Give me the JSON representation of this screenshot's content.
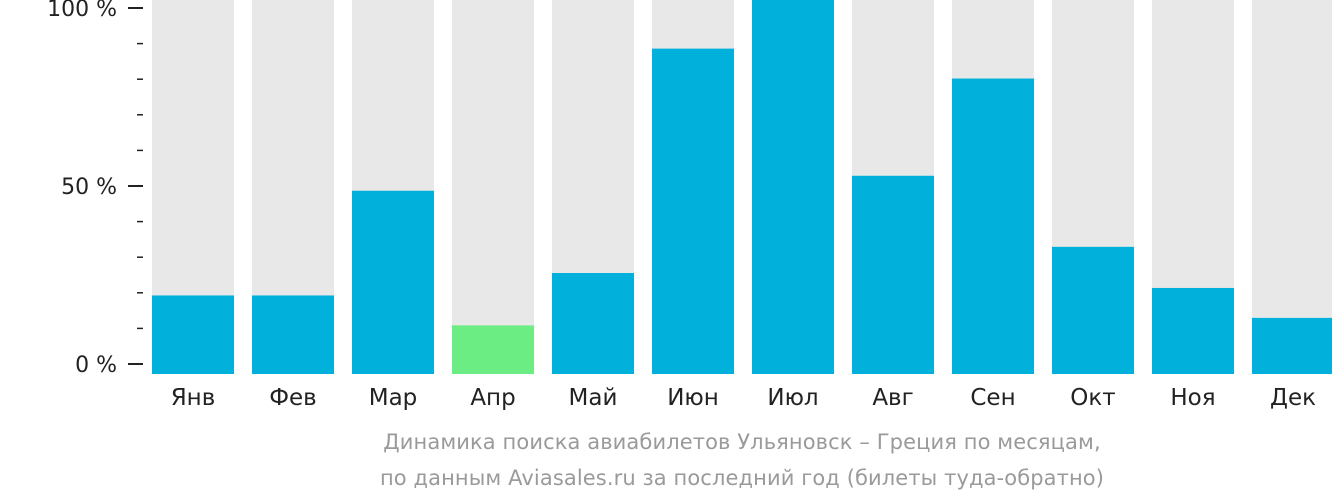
{
  "chart_data": {
    "type": "bar",
    "categories": [
      "Янв",
      "Фев",
      "Мар",
      "Апр",
      "Май",
      "Июн",
      "Июл",
      "Авг",
      "Сен",
      "Окт",
      "Ноя",
      "Дек"
    ],
    "values": [
      21,
      21,
      49,
      13,
      27,
      87,
      100,
      53,
      79,
      34,
      23,
      15
    ],
    "ylim": [
      0,
      100
    ],
    "y_ticks": [
      {
        "value": 0,
        "label": "0 %"
      },
      {
        "value": 50,
        "label": "50 %"
      },
      {
        "value": 100,
        "label": "100 %"
      }
    ],
    "minor_ticks_per_major": 5,
    "highlight_category": "Апр",
    "colors": {
      "bar": "#02b0dc",
      "highlight": "#6ced84",
      "background_bar": "#e8e8e8",
      "axis": "#222222"
    },
    "xlabel": "",
    "ylabel": "",
    "grid": false,
    "legend": "none"
  },
  "caption": {
    "line1": "Динамика поиска авиабилетов Ульяновск – Греция по месяцам,",
    "line2": "по данным Aviasales.ru за последний год (билеты туда-обратно)"
  }
}
